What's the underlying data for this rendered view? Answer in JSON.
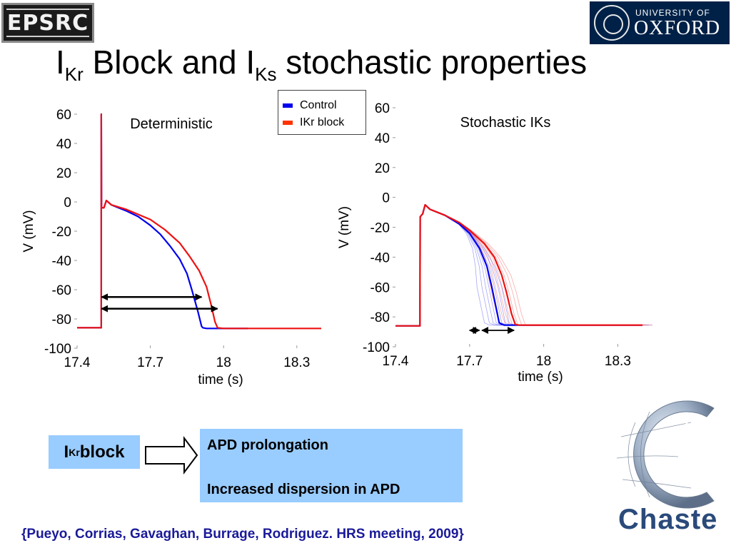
{
  "header": {
    "epsrc_logo_text": "EPSRC",
    "oxford_university_of": "UNIVERSITY OF",
    "oxford_name": "OXFORD",
    "title_main_1": "I",
    "title_sub_1": "Kr",
    "title_main_2": " Block and I",
    "title_sub_2": "Ks",
    "title_main_3": " stochastic properties"
  },
  "legend": {
    "entries": [
      {
        "label": "Control",
        "color": "#0000ee"
      },
      {
        "label": "IKr block",
        "color": "#ff3300"
      }
    ]
  },
  "colors": {
    "control": "#0000ee",
    "ikr_block": "#ee1111",
    "box_fill": "#99ccff",
    "citation": "#1a1a99"
  },
  "chart_data": [
    {
      "type": "line",
      "title": "Deterministic",
      "xlabel": "time (s)",
      "ylabel": "V (mV)",
      "xlim": [
        17.4,
        18.4
      ],
      "ylim": [
        -100,
        60
      ],
      "xticks": [
        17.4,
        17.7,
        18,
        18.3
      ],
      "yticks": [
        -100,
        -80,
        -60,
        -40,
        -20,
        0,
        20,
        40,
        60
      ],
      "grid": false,
      "series": [
        {
          "name": "Control",
          "color": "#0000ee",
          "points": [
            [
              17.4,
              -86
            ],
            [
              17.499,
              -86
            ],
            [
              17.499,
              60
            ],
            [
              17.5,
              -4
            ],
            [
              17.51,
              -4
            ],
            [
              17.52,
              1
            ],
            [
              17.54,
              -2
            ],
            [
              17.6,
              -6
            ],
            [
              17.65,
              -10
            ],
            [
              17.7,
              -16
            ],
            [
              17.74,
              -22
            ],
            [
              17.78,
              -30
            ],
            [
              17.82,
              -39
            ],
            [
              17.85,
              -49
            ],
            [
              17.87,
              -60
            ],
            [
              17.895,
              -75
            ],
            [
              17.91,
              -85
            ],
            [
              17.915,
              -86
            ],
            [
              17.93,
              -86.5
            ],
            [
              18.1,
              -86.5
            ]
          ]
        },
        {
          "name": "IKr block",
          "color": "#ee1111",
          "points": [
            [
              17.4,
              -86
            ],
            [
              17.499,
              -86
            ],
            [
              17.499,
              60
            ],
            [
              17.5,
              -4
            ],
            [
              17.51,
              -4
            ],
            [
              17.52,
              1
            ],
            [
              17.54,
              -2
            ],
            [
              17.6,
              -5
            ],
            [
              17.7,
              -12
            ],
            [
              17.76,
              -19
            ],
            [
              17.82,
              -28
            ],
            [
              17.86,
              -37
            ],
            [
              17.9,
              -47
            ],
            [
              17.93,
              -58
            ],
            [
              17.95,
              -71
            ],
            [
              17.965,
              -82
            ],
            [
              17.975,
              -86
            ],
            [
              18.0,
              -86.5
            ],
            [
              18.4,
              -86.5
            ]
          ]
        }
      ],
      "annotations": [
        {
          "type": "double-arrow",
          "x1": 17.5,
          "x2": 17.91,
          "y": -65
        },
        {
          "type": "double-arrow",
          "x1": 17.5,
          "x2": 17.975,
          "y": -73
        }
      ]
    },
    {
      "type": "line",
      "title": "Stochastic IKs",
      "xlabel": "time (s)",
      "ylabel": "V (mV)",
      "xlim": [
        17.4,
        18.4
      ],
      "ylim": [
        -100,
        60
      ],
      "xticks": [
        17.4,
        17.7,
        18,
        18.3
      ],
      "yticks": [
        -100,
        -80,
        -60,
        -40,
        -20,
        0,
        20,
        40,
        60
      ],
      "grid": false,
      "series": [
        {
          "name": "Control",
          "color": "#0000ee",
          "points": [
            [
              17.4,
              -86
            ],
            [
              17.499,
              -86
            ],
            [
              17.499,
              -73
            ],
            [
              17.5,
              -13
            ],
            [
              17.51,
              -11
            ],
            [
              17.52,
              -5
            ],
            [
              17.54,
              -8
            ],
            [
              17.6,
              -12
            ],
            [
              17.66,
              -18
            ],
            [
              17.7,
              -24
            ],
            [
              17.74,
              -34
            ],
            [
              17.77,
              -46
            ],
            [
              17.79,
              -60
            ],
            [
              17.81,
              -76
            ],
            [
              17.82,
              -84
            ],
            [
              17.84,
              -85.5
            ],
            [
              18.4,
              -85.5
            ]
          ]
        },
        {
          "name": "IKr block",
          "color": "#ee1111",
          "points": [
            [
              17.4,
              -86
            ],
            [
              17.499,
              -86
            ],
            [
              17.499,
              -73
            ],
            [
              17.5,
              -13
            ],
            [
              17.51,
              -11
            ],
            [
              17.52,
              -5
            ],
            [
              17.54,
              -8
            ],
            [
              17.6,
              -12
            ],
            [
              17.66,
              -17
            ],
            [
              17.7,
              -22
            ],
            [
              17.76,
              -31
            ],
            [
              17.8,
              -40
            ],
            [
              17.83,
              -52
            ],
            [
              17.85,
              -64
            ],
            [
              17.87,
              -78
            ],
            [
              17.885,
              -85
            ],
            [
              17.9,
              -85.5
            ],
            [
              18.4,
              -85.5
            ]
          ]
        }
      ],
      "annotations": [
        {
          "type": "double-arrow",
          "x1": 17.7,
          "x2": 17.74,
          "y": -89
        },
        {
          "type": "double-arrow",
          "x1": 17.75,
          "x2": 17.88,
          "y": -89
        }
      ]
    }
  ],
  "effects": {
    "cause_main": "I",
    "cause_sub": "Kr",
    "cause_rest": " block",
    "line1": "APD prolongation",
    "line2": "Increased dispersion in APD"
  },
  "citation": "{Pueyo, Corrias, Gavaghan, Burrage, Rodriguez. HRS meeting, 2009}",
  "chaste_logo_text": "Chaste"
}
